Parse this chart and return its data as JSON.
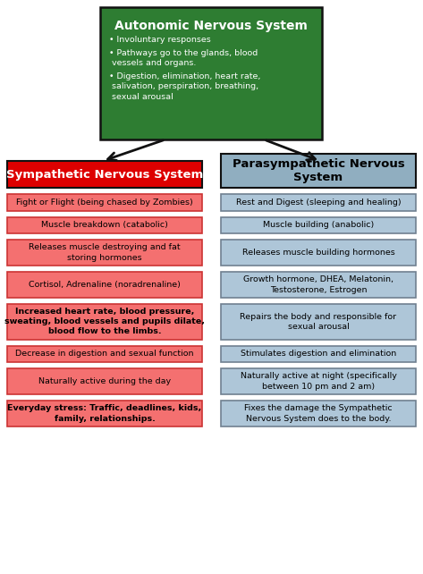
{
  "title": "Autonomic Nervous System",
  "title_color": "#ffffff",
  "title_bg": "#2e7d32",
  "bullet_points": [
    "Involuntary responses",
    "Pathways go to the glands, blood\n vessels and organs.",
    "Digestion, elimination, heart rate,\n salivation, perspiration, breathing,\n sexual arousal"
  ],
  "left_header": "Sympathetic Nervous System",
  "right_header": "Parasympathetic Nervous\nSystem",
  "left_header_bg": "#dd0000",
  "right_header_bg": "#90aec0",
  "left_items": [
    "Fight or Flight (being chased by Zombies)",
    "Muscle breakdown (catabolic)",
    "Releases muscle destroying and fat\nstoring hormones",
    "Cortisol, Adrenaline (noradrenaline)",
    "Increased heart rate, blood pressure,\nsweating, blood vessels and pupils dilate,\nblood flow to the limbs.",
    "Decrease in digestion and sexual function",
    "Naturally active during the day",
    "Everyday stress: Traffic, deadlines, kids,\nfamily, relationships."
  ],
  "right_items": [
    "Rest and Digest (sleeping and healing)",
    "Muscle building (anabolic)",
    "Releases muscle building hormones",
    "Growth hormone, DHEA, Melatonin,\nTestosterone, Estrogen",
    "Repairs the body and responsible for\nsexual arousal",
    "Stimulates digestion and elimination",
    "Naturally active at night (specifically\nbetween 10 pm and 2 am)",
    "Fixes the damage the Sympathetic\nNervous System does to the body."
  ],
  "left_item_bg": "#f47070",
  "right_item_bg": "#aec6d8",
  "bg_color": "#ffffff",
  "arrow_color": "#111111",
  "left_item_bold": [
    false,
    false,
    false,
    false,
    true,
    false,
    false,
    true
  ],
  "right_item_bold": [
    false,
    false,
    false,
    false,
    false,
    false,
    false,
    false
  ]
}
